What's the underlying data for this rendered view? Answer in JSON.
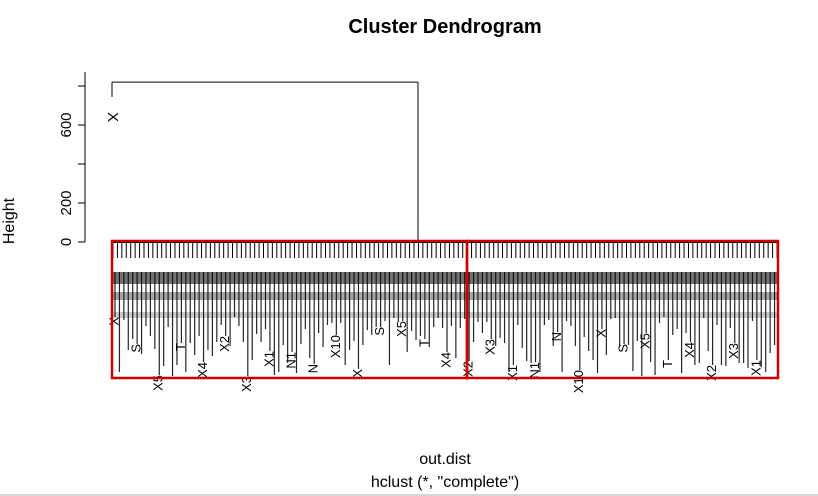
{
  "chart_data": {
    "type": "dendrogram",
    "title": "Cluster Dendrogram",
    "xlabel": "out.dist",
    "subtitle": "hclust (*, \"complete\")",
    "ylabel": "Height",
    "yticks": [
      0,
      200,
      600
    ],
    "ylim": [
      0,
      830
    ],
    "root_height": 820,
    "outlier_leaf_label": "X",
    "cluster_rect_count": 2,
    "rect_border_color": "#d00000",
    "line_color": "#000000"
  }
}
